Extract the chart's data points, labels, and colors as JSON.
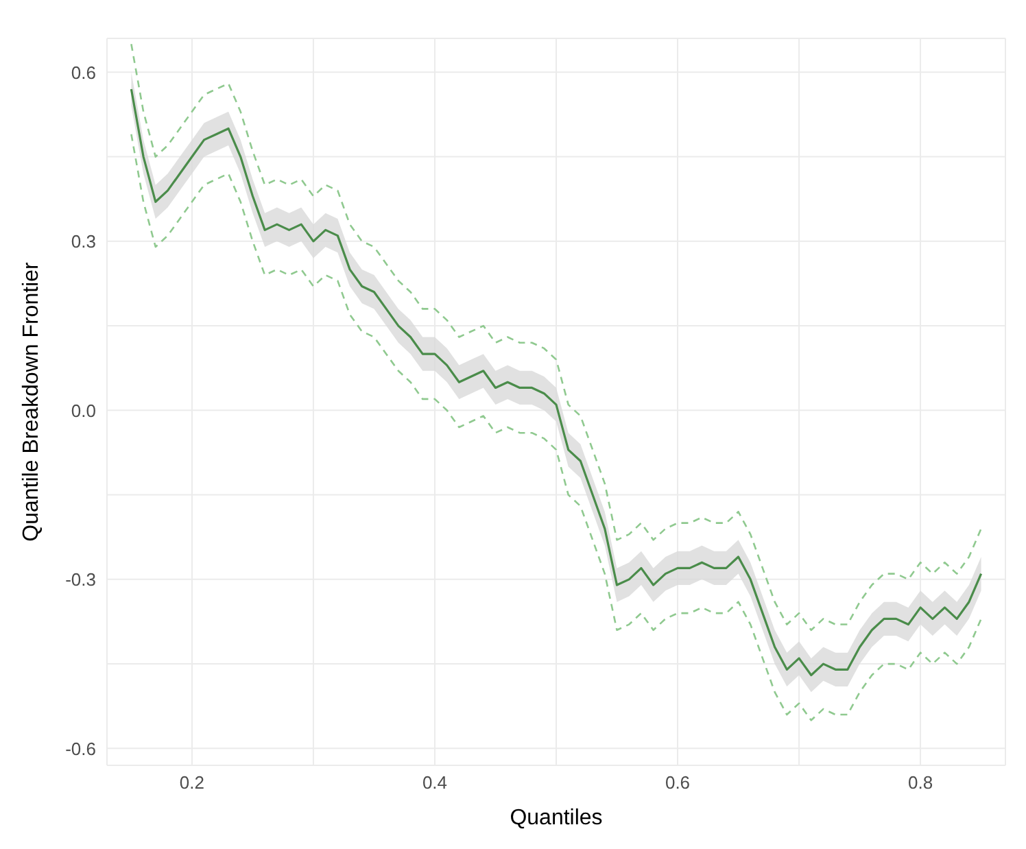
{
  "chart_data": {
    "type": "line",
    "xlabel": "Quantiles",
    "ylabel": "Quantile Breakdown Frontier",
    "x": [
      0.15,
      0.16,
      0.17,
      0.18,
      0.19,
      0.2,
      0.21,
      0.22,
      0.23,
      0.24,
      0.25,
      0.26,
      0.27,
      0.28,
      0.29,
      0.3,
      0.31,
      0.32,
      0.33,
      0.34,
      0.35,
      0.36,
      0.37,
      0.38,
      0.39,
      0.4,
      0.41,
      0.42,
      0.43,
      0.44,
      0.45,
      0.46,
      0.47,
      0.48,
      0.49,
      0.5,
      0.51,
      0.52,
      0.53,
      0.54,
      0.55,
      0.56,
      0.57,
      0.58,
      0.59,
      0.6,
      0.61,
      0.62,
      0.63,
      0.64,
      0.65,
      0.66,
      0.67,
      0.68,
      0.69,
      0.7,
      0.71,
      0.72,
      0.73,
      0.74,
      0.75,
      0.76,
      0.77,
      0.78,
      0.79,
      0.8,
      0.81,
      0.82,
      0.83,
      0.84,
      0.85
    ],
    "series": [
      {
        "color": "#4a8c4a",
        "line_style": "solid",
        "values": [
          0.57,
          0.45,
          0.37,
          0.39,
          0.42,
          0.45,
          0.48,
          0.49,
          0.5,
          0.45,
          0.38,
          0.32,
          0.33,
          0.32,
          0.33,
          0.3,
          0.32,
          0.31,
          0.25,
          0.22,
          0.21,
          0.18,
          0.15,
          0.13,
          0.1,
          0.1,
          0.08,
          0.05,
          0.06,
          0.07,
          0.04,
          0.05,
          0.04,
          0.04,
          0.03,
          0.01,
          -0.07,
          -0.09,
          -0.15,
          -0.21,
          -0.31,
          -0.3,
          -0.28,
          -0.31,
          -0.29,
          -0.28,
          -0.28,
          -0.27,
          -0.28,
          -0.28,
          -0.26,
          -0.3,
          -0.36,
          -0.42,
          -0.46,
          -0.44,
          -0.47,
          -0.45,
          -0.46,
          -0.46,
          -0.42,
          -0.39,
          -0.37,
          -0.37,
          -0.38,
          -0.35,
          -0.37,
          -0.35,
          -0.37,
          -0.34,
          -0.29
        ],
        "upper": [
          0.6,
          0.48,
          0.4,
          0.42,
          0.45,
          0.48,
          0.51,
          0.52,
          0.53,
          0.48,
          0.41,
          0.35,
          0.36,
          0.35,
          0.36,
          0.33,
          0.35,
          0.34,
          0.28,
          0.25,
          0.24,
          0.21,
          0.18,
          0.16,
          0.13,
          0.13,
          0.11,
          0.08,
          0.09,
          0.1,
          0.07,
          0.08,
          0.07,
          0.07,
          0.06,
          0.04,
          -0.04,
          -0.06,
          -0.12,
          -0.18,
          -0.28,
          -0.27,
          -0.25,
          -0.28,
          -0.26,
          -0.25,
          -0.25,
          -0.24,
          -0.25,
          -0.25,
          -0.23,
          -0.27,
          -0.33,
          -0.39,
          -0.43,
          -0.41,
          -0.44,
          -0.42,
          -0.43,
          -0.43,
          -0.39,
          -0.36,
          -0.34,
          -0.34,
          -0.35,
          -0.32,
          -0.34,
          -0.32,
          -0.34,
          -0.31,
          -0.26
        ],
        "lower": [
          0.54,
          0.42,
          0.34,
          0.36,
          0.39,
          0.42,
          0.45,
          0.46,
          0.47,
          0.42,
          0.35,
          0.29,
          0.3,
          0.29,
          0.3,
          0.27,
          0.29,
          0.28,
          0.22,
          0.19,
          0.18,
          0.15,
          0.12,
          0.1,
          0.07,
          0.07,
          0.05,
          0.02,
          0.03,
          0.04,
          0.01,
          0.02,
          0.01,
          0.01,
          0.0,
          -0.02,
          -0.1,
          -0.12,
          -0.18,
          -0.24,
          -0.34,
          -0.33,
          -0.31,
          -0.34,
          -0.32,
          -0.31,
          -0.31,
          -0.3,
          -0.31,
          -0.31,
          -0.29,
          -0.33,
          -0.39,
          -0.45,
          -0.49,
          -0.47,
          -0.5,
          -0.48,
          -0.49,
          -0.49,
          -0.45,
          -0.42,
          -0.4,
          -0.4,
          -0.41,
          -0.38,
          -0.4,
          -0.38,
          -0.4,
          -0.37,
          -0.32
        ]
      },
      {
        "color": "#8fc98f",
        "line_style": "dashed",
        "values": [
          0.65,
          0.53,
          0.45,
          0.47,
          0.5,
          0.53,
          0.56,
          0.57,
          0.58,
          0.53,
          0.46,
          0.4,
          0.41,
          0.4,
          0.41,
          0.38,
          0.4,
          0.39,
          0.33,
          0.3,
          0.29,
          0.26,
          0.23,
          0.21,
          0.18,
          0.18,
          0.16,
          0.13,
          0.14,
          0.15,
          0.12,
          0.13,
          0.12,
          0.12,
          0.11,
          0.09,
          0.01,
          -0.01,
          -0.07,
          -0.13,
          -0.23,
          -0.22,
          -0.2,
          -0.23,
          -0.21,
          -0.2,
          -0.2,
          -0.19,
          -0.2,
          -0.2,
          -0.18,
          -0.22,
          -0.28,
          -0.34,
          -0.38,
          -0.36,
          -0.39,
          -0.37,
          -0.38,
          -0.38,
          -0.34,
          -0.31,
          -0.29,
          -0.29,
          -0.3,
          -0.27,
          -0.29,
          -0.27,
          -0.29,
          -0.26,
          -0.21
        ]
      },
      {
        "color": "#8fc98f",
        "line_style": "dashed",
        "values": [
          0.49,
          0.37,
          0.29,
          0.31,
          0.34,
          0.37,
          0.4,
          0.41,
          0.42,
          0.37,
          0.3,
          0.24,
          0.25,
          0.24,
          0.25,
          0.22,
          0.24,
          0.23,
          0.17,
          0.14,
          0.13,
          0.1,
          0.07,
          0.05,
          0.02,
          0.02,
          0.0,
          -0.03,
          -0.02,
          -0.01,
          -0.04,
          -0.03,
          -0.04,
          -0.04,
          -0.05,
          -0.07,
          -0.15,
          -0.17,
          -0.23,
          -0.29,
          -0.39,
          -0.38,
          -0.36,
          -0.39,
          -0.37,
          -0.36,
          -0.36,
          -0.35,
          -0.36,
          -0.36,
          -0.34,
          -0.38,
          -0.44,
          -0.5,
          -0.54,
          -0.52,
          -0.55,
          -0.53,
          -0.54,
          -0.54,
          -0.5,
          -0.47,
          -0.45,
          -0.45,
          -0.46,
          -0.43,
          -0.45,
          -0.43,
          -0.45,
          -0.42,
          -0.37
        ]
      }
    ],
    "xlim": [
      0.13,
      0.87
    ],
    "xticks": [
      0.2,
      {
        "value": 0.3,
        "label": null
      },
      0.4,
      {
        "value": 0.5,
        "label": null
      },
      0.6,
      {
        "value": 0.7,
        "label": null
      },
      0.8
    ],
    "ylim": [
      -0.63,
      0.66
    ],
    "yticks": [
      -0.6,
      {
        "value": -0.45,
        "label": null
      },
      -0.3,
      {
        "value": -0.15,
        "label": null
      },
      {
        "value": 0,
        "label": "0.0"
      },
      {
        "value": 0.15,
        "label": null
      },
      0.3,
      {
        "value": 0.45,
        "label": null
      },
      0.6
    ],
    "grid": true,
    "legend": false
  }
}
